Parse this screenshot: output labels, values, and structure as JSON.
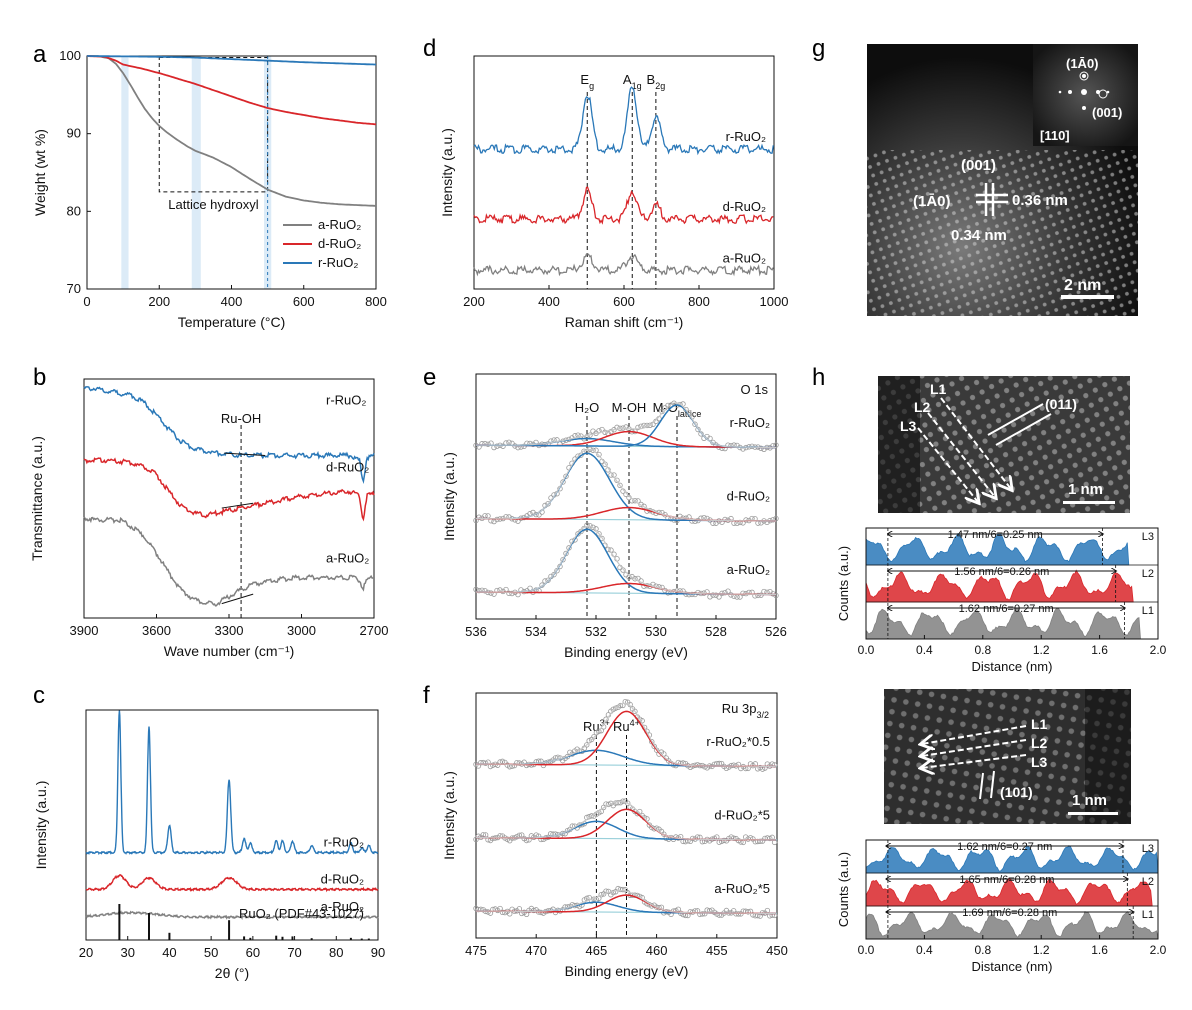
{
  "colors": {
    "a": "#808080",
    "d": "#d9262a",
    "r": "#2a78b8",
    "tem_dark": "#0c0c0c",
    "white": "#ffffff",
    "guide": "#111111",
    "band": "#dcebf7"
  },
  "chart_data": [
    {
      "id": "a",
      "panel_label": "a",
      "type": "line",
      "xlabel": "Temperature (°C)",
      "ylabel": "Weight (wt %)",
      "xlim": [
        0,
        800
      ],
      "ylim": [
        70,
        100
      ],
      "xticks": [
        0,
        200,
        400,
        600,
        800
      ],
      "yticks": [
        70,
        80,
        90,
        100
      ],
      "xtick_labels": [
        "0",
        "200",
        "400",
        "600",
        "800"
      ],
      "ytick_labels": [
        "70",
        "80",
        "90",
        "100"
      ],
      "bands": [
        [
          95,
          115
        ],
        [
          290,
          315
        ],
        [
          490,
          510
        ]
      ],
      "box": {
        "x": [
          200,
          500
        ],
        "y": [
          82.5,
          99.8
        ]
      },
      "annotation": "Lattice hydroxyl",
      "legend": [
        "a-RuO₂",
        "d-RuO₂",
        "r-RuO₂"
      ],
      "legend_position": "bottom-right",
      "series": [
        {
          "name": "a-RuO₂",
          "color_key": "a",
          "x": [
            0,
            30,
            60,
            80,
            100,
            120,
            140,
            160,
            180,
            200,
            220,
            250,
            280,
            300,
            350,
            400,
            450,
            500,
            550,
            600,
            650,
            700,
            750,
            800
          ],
          "y": [
            100,
            100,
            99.7,
            99.0,
            97.8,
            96.3,
            94.7,
            93.2,
            92.0,
            91.0,
            90.2,
            89.2,
            88.3,
            87.8,
            86.9,
            85.7,
            84.2,
            82.8,
            81.9,
            81.4,
            81.1,
            80.9,
            80.8,
            80.7
          ]
        },
        {
          "name": "d-RuO₂",
          "color_key": "d",
          "x": [
            0,
            50,
            80,
            100,
            150,
            200,
            250,
            300,
            350,
            400,
            450,
            500,
            550,
            600,
            650,
            700,
            750,
            800
          ],
          "y": [
            100,
            99.9,
            99.4,
            98.9,
            98.4,
            97.8,
            97.1,
            96.4,
            95.6,
            94.8,
            94.0,
            93.3,
            92.8,
            92.4,
            92.0,
            91.7,
            91.4,
            91.2
          ]
        },
        {
          "name": "r-RuO₂",
          "color_key": "r",
          "x": [
            0,
            100,
            200,
            300,
            400,
            500,
            600,
            700,
            800
          ],
          "y": [
            100,
            99.95,
            99.9,
            99.8,
            99.6,
            99.4,
            99.2,
            99.05,
            98.9
          ]
        }
      ]
    },
    {
      "id": "b",
      "panel_label": "b",
      "type": "line",
      "xlabel": "Wave number (cm⁻¹)",
      "ylabel": "Transmittance (a.u.)",
      "xlim": [
        3900,
        2700
      ],
      "ylim": [
        0,
        1
      ],
      "xticks": [
        3900,
        3600,
        3300,
        3000,
        2700
      ],
      "xtick_labels": [
        "3900",
        "3600",
        "3300",
        "3000",
        "2700"
      ],
      "annotation": "Ru-OH",
      "marker_x": 3250,
      "series": [
        {
          "name": "r-RuO₂",
          "color_key": "r",
          "offset": 0.66,
          "x": [
            3900,
            3850,
            3800,
            3750,
            3700,
            3650,
            3600,
            3550,
            3500,
            3450,
            3400,
            3350,
            3300,
            3250,
            3200,
            3100,
            3000,
            2900,
            2800,
            2760,
            2745,
            2730,
            2700
          ],
          "y": [
            0.3,
            0.3,
            0.29,
            0.28,
            0.27,
            0.24,
            0.19,
            0.13,
            0.08,
            0.05,
            0.04,
            0.03,
            0.025,
            0.02,
            0.02,
            0.02,
            0.02,
            0.02,
            0.02,
            0.0,
            -0.09,
            0.01,
            0.02
          ]
        },
        {
          "name": "d-RuO₂",
          "color_key": "d",
          "offset": 0.38,
          "x": [
            3900,
            3800,
            3700,
            3650,
            3600,
            3550,
            3500,
            3450,
            3400,
            3350,
            3300,
            3250,
            3200,
            3100,
            3000,
            2900,
            2800,
            2760,
            2745,
            2730,
            2700
          ],
          "y": [
            0.28,
            0.28,
            0.27,
            0.25,
            0.22,
            0.15,
            0.09,
            0.06,
            0.05,
            0.06,
            0.07,
            0.08,
            0.09,
            0.11,
            0.13,
            0.14,
            0.15,
            0.13,
            0.03,
            0.13,
            0.14
          ]
        },
        {
          "name": "a-RuO₂",
          "color_key": "a",
          "offset": 0.0,
          "x": [
            3900,
            3850,
            3800,
            3750,
            3700,
            3650,
            3600,
            3550,
            3500,
            3450,
            3400,
            3350,
            3300,
            3250,
            3200,
            3100,
            3000,
            2900,
            2800,
            2760,
            2745,
            2730,
            2700
          ],
          "y": [
            0.42,
            0.41,
            0.41,
            0.41,
            0.38,
            0.34,
            0.27,
            0.19,
            0.12,
            0.08,
            0.06,
            0.06,
            0.09,
            0.12,
            0.14,
            0.16,
            0.17,
            0.17,
            0.17,
            0.16,
            0.12,
            0.16,
            0.17
          ]
        }
      ],
      "labels": [
        "r-RuO₂",
        "d-RuO₂",
        "a-RuO₂"
      ]
    },
    {
      "id": "c",
      "panel_label": "c",
      "type": "line",
      "xlabel": "2θ (°)",
      "ylabel": "Intensity (a.u.)",
      "xlim": [
        20,
        90
      ],
      "ylim": [
        0,
        1
      ],
      "xticks": [
        20,
        30,
        40,
        50,
        60,
        70,
        80,
        90
      ],
      "xtick_labels": [
        "20",
        "30",
        "40",
        "50",
        "60",
        "70",
        "80",
        "90"
      ],
      "series": [
        {
          "name": "r-RuO₂",
          "color_key": "r",
          "offset": 0.38,
          "peaks": [
            [
              28.0,
              0.62,
              0.35
            ],
            [
              35.1,
              0.55,
              0.35
            ],
            [
              40.0,
              0.12,
              0.4
            ],
            [
              54.3,
              0.32,
              0.4
            ],
            [
              57.9,
              0.06,
              0.4
            ],
            [
              59.4,
              0.04,
              0.4
            ],
            [
              65.6,
              0.05,
              0.4
            ],
            [
              67.1,
              0.05,
              0.4
            ],
            [
              69.5,
              0.05,
              0.4
            ],
            [
              74.1,
              0.03,
              0.4
            ],
            [
              83.5,
              0.04,
              0.4
            ],
            [
              86.1,
              0.02,
              0.4
            ],
            [
              87.8,
              0.03,
              0.4
            ]
          ]
        },
        {
          "name": "d-RuO₂",
          "color_key": "d",
          "offset": 0.22,
          "peaks": [
            [
              28.0,
              0.06,
              1.6
            ],
            [
              35.1,
              0.05,
              1.6
            ],
            [
              54.3,
              0.05,
              1.8
            ]
          ]
        },
        {
          "name": "a-RuO₂",
          "color_key": "a",
          "offset": 0.1,
          "peaks": [
            [
              28.0,
              0.015,
              4
            ],
            [
              35.0,
              0.012,
              4
            ]
          ]
        }
      ],
      "reference": {
        "name": "RuO₂ (PDF#43-1027)",
        "sticks": [
          [
            28.0,
            1.0
          ],
          [
            35.1,
            0.75
          ],
          [
            40.0,
            0.2
          ],
          [
            54.3,
            0.55
          ],
          [
            57.9,
            0.1
          ],
          [
            59.4,
            0.06
          ],
          [
            65.6,
            0.12
          ],
          [
            67.1,
            0.09
          ],
          [
            69.5,
            0.1
          ],
          [
            74.1,
            0.05
          ],
          [
            83.5,
            0.06
          ],
          [
            86.1,
            0.04
          ],
          [
            87.8,
            0.04
          ]
        ]
      },
      "labels": [
        "r-RuO₂",
        "d-RuO₂",
        "a-RuO₂"
      ]
    },
    {
      "id": "d",
      "panel_label": "d",
      "type": "line",
      "xlabel": "Raman shift (cm⁻¹)",
      "ylabel": "Intensity (a.u.)",
      "xlim": [
        200,
        1000
      ],
      "ylim": [
        0,
        1
      ],
      "xticks": [
        200,
        400,
        600,
        800,
        1000
      ],
      "xtick_labels": [
        "200",
        "400",
        "600",
        "800",
        "1000"
      ],
      "marker_lines": [
        502,
        622,
        685
      ],
      "peak_labels": [
        {
          "x": 502,
          "text": "E",
          "sub": "g"
        },
        {
          "x": 622,
          "text": "A",
          "sub": "1g"
        },
        {
          "x": 685,
          "text": "B",
          "sub": "2g"
        }
      ],
      "series": [
        {
          "name": "r-RuO₂",
          "color_key": "r",
          "offset": 0.6,
          "peaks": [
            [
              502,
              0.24,
              12
            ],
            [
              622,
              0.27,
              12
            ],
            [
              685,
              0.14,
              12
            ]
          ],
          "baseline": [
            0.0,
            0.05
          ]
        },
        {
          "name": "d-RuO₂",
          "color_key": "d",
          "offset": 0.3,
          "peaks": [
            [
              502,
              0.12,
              12
            ],
            [
              622,
              0.12,
              12
            ],
            [
              685,
              0.06,
              12
            ]
          ],
          "baseline": [
            0.0,
            0.0
          ]
        },
        {
          "name": "a-RuO₂",
          "color_key": "a",
          "offset": 0.08,
          "peaks": [
            [
              502,
              0.06,
              14
            ],
            [
              622,
              0.06,
              14
            ]
          ],
          "baseline": [
            0.0,
            0.0
          ]
        }
      ],
      "labels": [
        "r-RuO₂",
        "d-RuO₂",
        "a-RuO₂"
      ]
    },
    {
      "id": "e",
      "panel_label": "e",
      "type": "line",
      "title": "O 1s",
      "xlabel": "Binding energy (eV)",
      "ylabel": "Intensity (a.u.)",
      "xlim": [
        536,
        526
      ],
      "ylim": [
        0,
        1
      ],
      "xticks": [
        536,
        534,
        532,
        530,
        528,
        526
      ],
      "xtick_labels": [
        "536",
        "534",
        "532",
        "530",
        "528",
        "526"
      ],
      "marker_lines": [
        532.3,
        530.9,
        529.3
      ],
      "peak_labels": [
        {
          "x": 532.3,
          "text": "H₂O"
        },
        {
          "x": 530.9,
          "text": "M-OH"
        },
        {
          "x": 529.3,
          "text": "M-O",
          "sub": "lattice"
        }
      ],
      "series": [
        {
          "name": "r-RuO₂",
          "offset": 0.7,
          "components": [
            [
              532.3,
              0.03,
              0.9,
              "r"
            ],
            [
              530.9,
              0.06,
              0.8,
              "d"
            ],
            [
              529.3,
              0.17,
              0.55,
              "r"
            ]
          ]
        },
        {
          "name": "d-RuO₂",
          "offset": 0.4,
          "components": [
            [
              532.3,
              0.27,
              0.75,
              "r"
            ],
            [
              530.9,
              0.05,
              0.9,
              "d"
            ]
          ]
        },
        {
          "name": "a-RuO₂",
          "offset": 0.1,
          "components": [
            [
              532.3,
              0.26,
              0.7,
              "r"
            ],
            [
              530.9,
              0.04,
              0.9,
              "d"
            ]
          ]
        }
      ],
      "labels": [
        "r-RuO₂",
        "d-RuO₂",
        "a-RuO₂"
      ]
    },
    {
      "id": "f",
      "panel_label": "f",
      "type": "line",
      "title": "Ru 3p",
      "title_sub": "3/2",
      "xlabel": "Binding energy (eV)",
      "ylabel": "Intensity (a.u.)",
      "xlim": [
        475,
        450
      ],
      "ylim": [
        0,
        1
      ],
      "xticks": [
        475,
        470,
        465,
        460,
        455,
        450
      ],
      "xtick_labels": [
        "475",
        "470",
        "465",
        "460",
        "455",
        "450"
      ],
      "marker_lines": [
        465.0,
        462.5
      ],
      "peak_labels": [
        {
          "x": 465.0,
          "text": "Ru",
          "sup": "3+"
        },
        {
          "x": 462.5,
          "text": "Ru",
          "sup": "4+"
        }
      ],
      "series": [
        {
          "name": "r-RuO₂*0.5",
          "offset": 0.7,
          "components": [
            [
              465.0,
              0.06,
              2.2,
              "r"
            ],
            [
              462.5,
              0.22,
              1.6,
              "d"
            ]
          ]
        },
        {
          "name": "d-RuO₂*5",
          "offset": 0.4,
          "components": [
            [
              465.0,
              0.07,
              1.8,
              "r"
            ],
            [
              462.5,
              0.12,
              1.6,
              "d"
            ]
          ]
        },
        {
          "name": "a-RuO₂*5",
          "offset": 0.1,
          "components": [
            [
              465.0,
              0.04,
              1.8,
              "r"
            ],
            [
              462.5,
              0.07,
              1.6,
              "d"
            ]
          ]
        }
      ],
      "labels": [
        "r-RuO₂*0.5",
        "d-RuO₂*5",
        "a-RuO₂*5"
      ]
    },
    {
      "id": "h1",
      "panel_label": "h",
      "type": "area",
      "xlabel": "Distance (nm)",
      "ylabel": "Counts (a.u.)",
      "xlim": [
        0.0,
        2.0
      ],
      "xticks": [
        0.0,
        0.4,
        0.8,
        1.2,
        1.6,
        2.0
      ],
      "xtick_labels": [
        "0.0",
        "0.4",
        "0.8",
        "1.2",
        "1.6",
        "2.0"
      ],
      "series": [
        {
          "name": "L3",
          "color_key": "r",
          "xmax": 1.8,
          "annotation": "1.47 nm/6=0.25 nm",
          "span": [
            0.15,
            1.62
          ]
        },
        {
          "name": "L2",
          "color_key": "d",
          "xmax": 1.83,
          "annotation": "1.56 nm/6=0.26 nm",
          "span": [
            0.15,
            1.71
          ]
        },
        {
          "name": "L1",
          "color_key": "a",
          "xmax": 1.88,
          "annotation": "1.62 nm/6=0.27 nm",
          "span": [
            0.15,
            1.77
          ]
        }
      ]
    },
    {
      "id": "h2",
      "panel_label": "",
      "type": "area",
      "xlabel": "Distance (nm)",
      "ylabel": "Counts (a.u.)",
      "xlim": [
        0.0,
        2.0
      ],
      "xticks": [
        0.0,
        0.4,
        0.8,
        1.2,
        1.6,
        2.0
      ],
      "xtick_labels": [
        "0.0",
        "0.4",
        "0.8",
        "1.2",
        "1.6",
        "2.0"
      ],
      "series": [
        {
          "name": "L3",
          "color_key": "r",
          "xmax": 2.0,
          "annotation": "1.62 nm/6=0.27 nm",
          "span": [
            0.14,
            1.76
          ]
        },
        {
          "name": "L2",
          "color_key": "d",
          "xmax": 1.96,
          "annotation": "1.65 nm/6=0.28 nm",
          "span": [
            0.14,
            1.79
          ]
        },
        {
          "name": "L1",
          "color_key": "a",
          "xmax": 2.0,
          "annotation": "1.69 nm/6=0.28 nm",
          "span": [
            0.14,
            1.83
          ]
        }
      ]
    }
  ],
  "images": {
    "g": {
      "panel_label": "g",
      "inset_labels": [
        "(1Ā0)",
        "(001)",
        "[110]"
      ],
      "labels": [
        "(001)",
        "(1Ā0)",
        "0.36 nm",
        "0.34 nm"
      ],
      "scale_bar": "2 nm"
    },
    "h_top": {
      "line_labels": [
        "L1",
        "L2",
        "L3"
      ],
      "plane": "(011)",
      "scale_bar": "1 nm"
    },
    "h_bottom": {
      "line_labels": [
        "L1",
        "L2",
        "L3"
      ],
      "plane": "(101)",
      "scale_bar": "1 nm"
    }
  }
}
